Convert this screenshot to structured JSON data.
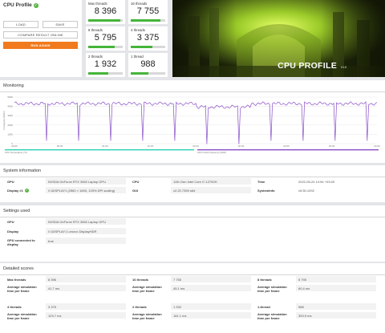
{
  "header": {
    "title": "CPU Profile",
    "load_label": "LOAD",
    "save_label": "SAVE",
    "compare_label": "COMPARE RESULT ONLINE",
    "run_again_label": "RUN AGAIN"
  },
  "scores": [
    {
      "label": "Max threads",
      "value": "8 396",
      "fill": 0.93
    },
    {
      "label": "16 threads",
      "value": "7 755",
      "fill": 0.87
    },
    {
      "label": "8 threads",
      "value": "5 795",
      "fill": 0.76
    },
    {
      "label": "4 threads",
      "value": "3 375",
      "fill": 0.62
    },
    {
      "label": "2 threads",
      "value": "1 932",
      "fill": 0.58
    },
    {
      "label": "1 thread",
      "value": "988",
      "fill": 0.52
    }
  ],
  "hero": {
    "title": "CPU PROFILE",
    "version": "V1.0"
  },
  "monitoring": {
    "title": "Monitoring",
    "ylabel": "Frequency (MHz)",
    "yticks": [
      "5000",
      "4000",
      "3000",
      "2000",
      "1000",
      "0"
    ],
    "xticks": [
      "00:00",
      "00:30",
      "01:00",
      "01:30",
      "02:00",
      "02:30",
      "03:00",
      "03:30",
      "04:00"
    ],
    "legend": [
      "CPU Temperature (°C)",
      "CPU Clock Frequency (MHz)"
    ],
    "colors": {
      "temp": "#2fd1b3",
      "freq": "#8a4fc8"
    }
  },
  "system_info": {
    "title": "System information",
    "gpu_label": "GPU",
    "gpu_value": "NVIDIA GeForce RTX 3060 Laptop GPU",
    "display_label": "Display #1",
    "display_value": "\\\\.\\DISPLAY1 (2560 × 1600, 125% DPI scaling)",
    "cpu_label": "CPU",
    "cpu_value": "12th Gen Intel Core i7-12700H",
    "gui_label": "GUI",
    "gui_value": "v2.22.7359 s64",
    "time_label": "Time",
    "time_value": "2022-05-24 14:54 +03:00",
    "sysinfo_label": "SystemInfo",
    "sysinfo_value": "v5.50.1092"
  },
  "settings": {
    "title": "Settings used",
    "gpu_label": "GPU",
    "gpu_value": "NVIDIA GeForce RTX 3060 Laptop GPU",
    "display_label": "Display",
    "display_value": "\\\\.\\DISPLAY1 Lenovo DisplayHDR",
    "connected_label": "GPU connected to display",
    "connected_value": "true"
  },
  "detailed": {
    "title": "Detailed scores",
    "avg_label": "Average simulation time per frame",
    "items": [
      {
        "label": "Max threads",
        "score": "8 396",
        "avg": "41.7 ms"
      },
      {
        "label": "16 threads",
        "score": "7 755",
        "avg": "45.1 ms"
      },
      {
        "label": "8 threads",
        "score": "5 795",
        "avg": "60.4 ms"
      },
      {
        "label": "4 threads",
        "score": "3 375",
        "avg": "103.7 ms"
      },
      {
        "label": "2 threads",
        "score": "1 932",
        "avg": "181.1 ms"
      },
      {
        "label": "1-thread",
        "score": "988",
        "avg": "353.9 ms"
      }
    ]
  }
}
